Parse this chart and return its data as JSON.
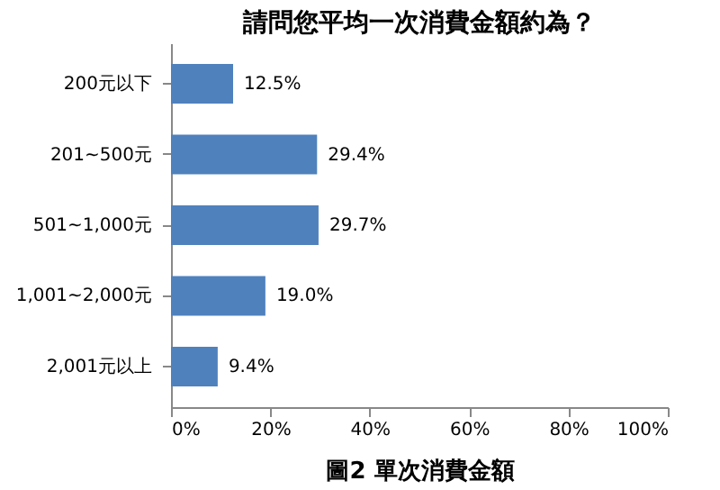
{
  "chart_data": {
    "type": "bar",
    "orientation": "horizontal",
    "title": "請問您平均一次消費金額約為？",
    "categories": [
      "200元以下",
      "201~500元",
      "501~1,000元",
      "1,001~2,000元",
      "2,001元以上"
    ],
    "values": [
      12.5,
      29.4,
      29.7,
      19.0,
      9.4
    ],
    "value_labels": [
      "12.5%",
      "29.4%",
      "29.7%",
      "19.0%",
      "9.4%"
    ],
    "color": "#4f81bd",
    "xlim": [
      0,
      100
    ],
    "xticks": [
      {
        "value": 0,
        "label": "0%"
      },
      {
        "value": 20,
        "label": "20%"
      },
      {
        "value": 40,
        "label": "40%"
      },
      {
        "value": 60,
        "label": "60%"
      },
      {
        "value": 80,
        "label": "80%"
      },
      {
        "value": 100,
        "label": "100%"
      }
    ],
    "grid": false,
    "annotations": [
      "圖2 單次消費金額"
    ]
  }
}
